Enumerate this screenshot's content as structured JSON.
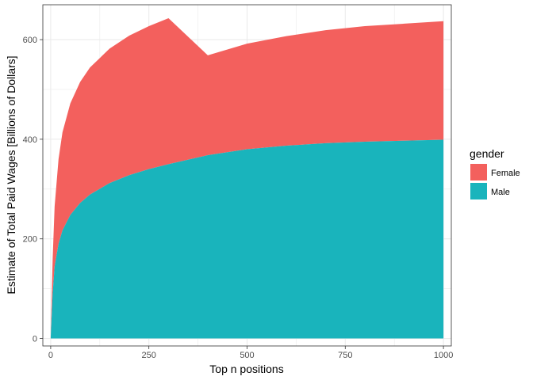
{
  "chart_data": {
    "type": "area",
    "stacked": true,
    "title": "",
    "xlabel": "Top n positions",
    "ylabel": "Estimate of Total Paid Wages [Billions of Dollars]",
    "xlim": [
      -20,
      1020
    ],
    "ylim": [
      -15,
      670
    ],
    "x_ticks": [
      0,
      250,
      500,
      750,
      1000
    ],
    "y_ticks": [
      0,
      200,
      400,
      600
    ],
    "x_tick_labels": [
      "0",
      "250",
      "500",
      "750",
      "1000"
    ],
    "y_tick_labels": [
      "0",
      "200",
      "400",
      "600"
    ],
    "grid": true,
    "legend": {
      "title": "gender",
      "position": "right"
    },
    "x": [
      0,
      5,
      10,
      20,
      30,
      50,
      75,
      100,
      150,
      200,
      250,
      300,
      400,
      500,
      600,
      700,
      800,
      900,
      1000
    ],
    "series": [
      {
        "name": "Male",
        "color": "#19B4BC",
        "values": [
          0,
          90,
          145,
          190,
          217,
          248,
          272,
          289,
          312,
          328,
          340,
          350,
          368,
          380,
          387,
          392,
          395,
          397,
          399
        ]
      },
      {
        "name": "Female",
        "color": "#F3605D",
        "values": [
          0,
          70,
          120,
          170,
          197,
          224,
          243,
          255,
          270,
          280,
          287,
          293,
          200.5,
          212,
          220,
          227,
          232,
          235,
          238
        ]
      }
    ],
    "stack_totals": [
      0,
      160,
      265,
      360,
      414,
      472,
      515,
      544,
      582,
      608,
      627,
      643,
      568.5,
      592,
      607,
      619,
      627,
      632,
      637
    ]
  }
}
